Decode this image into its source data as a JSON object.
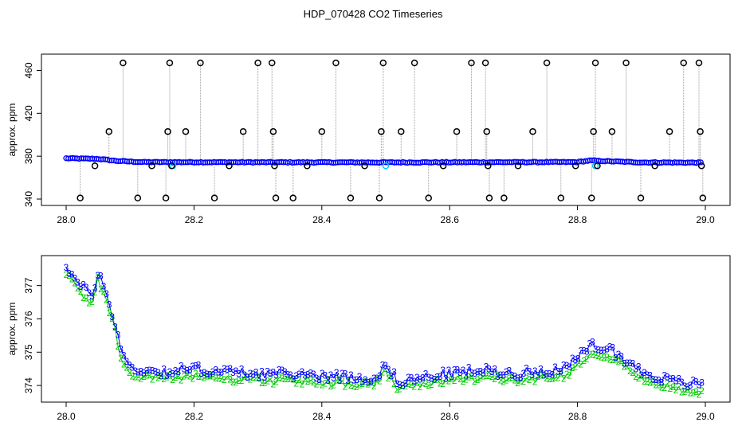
{
  "title": "HDP_070428  CO2 Timeseries",
  "chart_data": [
    {
      "type": "scatter",
      "ylabel": "approx. ppm",
      "xlim": [
        28.0,
        29.0
      ],
      "ylim": [
        340,
        470
      ],
      "xticks": [
        28.0,
        28.2,
        28.4,
        28.6,
        28.8,
        29.0
      ],
      "xtick_labels": [
        "28.0",
        "28.2",
        "28.4",
        "28.6",
        "28.8",
        "29.0"
      ],
      "yticks": [
        340,
        380,
        420,
        460
      ],
      "ytick_labels": [
        "340",
        "380",
        "420",
        "460"
      ],
      "grid": false,
      "baseline_breakpoints": [
        [
          28.0,
          378
        ],
        [
          28.05,
          377.5
        ],
        [
          28.08,
          375.5
        ],
        [
          28.12,
          374.5
        ],
        [
          28.3,
          374.3
        ],
        [
          28.5,
          374.2
        ],
        [
          28.6,
          374.3
        ],
        [
          28.8,
          374.5
        ],
        [
          28.82,
          376
        ],
        [
          28.85,
          375.2
        ],
        [
          28.9,
          374.2
        ],
        [
          29.0,
          374
        ]
      ],
      "outliers": [
        {
          "x": 28.022,
          "y": 341
        },
        {
          "x": 28.045,
          "y": 371
        },
        {
          "x": 28.067,
          "y": 403
        },
        {
          "x": 28.089,
          "y": 467
        },
        {
          "x": 28.112,
          "y": 341
        },
        {
          "x": 28.134,
          "y": 371
        },
        {
          "x": 28.156,
          "y": 341
        },
        {
          "x": 28.159,
          "y": 403
        },
        {
          "x": 28.162,
          "y": 467
        },
        {
          "x": 28.165,
          "y": 371
        },
        {
          "x": 28.187,
          "y": 403
        },
        {
          "x": 28.21,
          "y": 467
        },
        {
          "x": 28.232,
          "y": 341
        },
        {
          "x": 28.255,
          "y": 371
        },
        {
          "x": 28.277,
          "y": 403
        },
        {
          "x": 28.3,
          "y": 467
        },
        {
          "x": 28.322,
          "y": 467
        },
        {
          "x": 28.324,
          "y": 403
        },
        {
          "x": 28.326,
          "y": 371
        },
        {
          "x": 28.328,
          "y": 341
        },
        {
          "x": 28.355,
          "y": 341
        },
        {
          "x": 28.377,
          "y": 371
        },
        {
          "x": 28.4,
          "y": 403
        },
        {
          "x": 28.422,
          "y": 467
        },
        {
          "x": 28.445,
          "y": 341
        },
        {
          "x": 28.467,
          "y": 371
        },
        {
          "x": 28.49,
          "y": 341
        },
        {
          "x": 28.493,
          "y": 403
        },
        {
          "x": 28.496,
          "y": 467
        },
        {
          "x": 28.524,
          "y": 403
        },
        {
          "x": 28.545,
          "y": 467
        },
        {
          "x": 28.567,
          "y": 341
        },
        {
          "x": 28.59,
          "y": 371
        },
        {
          "x": 28.611,
          "y": 403
        },
        {
          "x": 28.634,
          "y": 467
        },
        {
          "x": 28.656,
          "y": 467
        },
        {
          "x": 28.658,
          "y": 403
        },
        {
          "x": 28.66,
          "y": 371
        },
        {
          "x": 28.662,
          "y": 341
        },
        {
          "x": 28.685,
          "y": 341
        },
        {
          "x": 28.707,
          "y": 371
        },
        {
          "x": 28.73,
          "y": 403
        },
        {
          "x": 28.752,
          "y": 467
        },
        {
          "x": 28.774,
          "y": 341
        },
        {
          "x": 28.797,
          "y": 371
        },
        {
          "x": 28.822,
          "y": 341
        },
        {
          "x": 28.825,
          "y": 403
        },
        {
          "x": 28.828,
          "y": 467
        },
        {
          "x": 28.831,
          "y": 371
        },
        {
          "x": 28.854,
          "y": 403
        },
        {
          "x": 28.876,
          "y": 467
        },
        {
          "x": 28.899,
          "y": 341
        },
        {
          "x": 28.921,
          "y": 371
        },
        {
          "x": 28.944,
          "y": 403
        },
        {
          "x": 28.966,
          "y": 467
        },
        {
          "x": 28.99,
          "y": 467
        },
        {
          "x": 28.992,
          "y": 403
        },
        {
          "x": 28.994,
          "y": 371
        },
        {
          "x": 28.996,
          "y": 341
        }
      ],
      "highlight_points": [
        {
          "x": 28.167,
          "y": 371
        },
        {
          "x": 28.5,
          "y": 371
        },
        {
          "x": 28.828,
          "y": 371
        }
      ],
      "colors": {
        "series": "#0000ff",
        "outlier": "#000000",
        "drop": "#999999",
        "highlight": "#00ccff"
      }
    },
    {
      "type": "line",
      "ylabel": "approx. ppm",
      "xlim": [
        28.0,
        29.0
      ],
      "ylim": [
        373.5,
        377.9
      ],
      "xticks": [
        28.0,
        28.2,
        28.4,
        28.6,
        28.8,
        29.0
      ],
      "xtick_labels": [
        "28.0",
        "28.2",
        "28.4",
        "28.6",
        "28.8",
        "29.0"
      ],
      "yticks": [
        374,
        375,
        376,
        377
      ],
      "ytick_labels": [
        "374",
        "375",
        "376",
        "377"
      ],
      "grid": false,
      "series": [
        {
          "marker": "3",
          "color": "#0000ff",
          "breakpoints": [
            [
              28.0,
              377.6
            ],
            [
              28.02,
              377.0
            ],
            [
              28.04,
              376.7
            ],
            [
              28.05,
              377.4
            ],
            [
              28.06,
              376.9
            ],
            [
              28.075,
              376.0
            ],
            [
              28.085,
              375.1
            ],
            [
              28.1,
              374.5
            ],
            [
              28.15,
              374.4
            ],
            [
              28.2,
              374.5
            ],
            [
              28.25,
              374.4
            ],
            [
              28.3,
              374.35
            ],
            [
              28.4,
              374.3
            ],
            [
              28.48,
              374.2
            ],
            [
              28.5,
              374.6
            ],
            [
              28.52,
              374.1
            ],
            [
              28.55,
              374.2
            ],
            [
              28.6,
              374.35
            ],
            [
              28.65,
              374.45
            ],
            [
              28.7,
              374.35
            ],
            [
              28.78,
              374.5
            ],
            [
              28.8,
              374.8
            ],
            [
              28.82,
              375.2
            ],
            [
              28.85,
              375.1
            ],
            [
              28.9,
              374.4
            ],
            [
              28.95,
              374.1
            ],
            [
              29.0,
              374.0
            ]
          ]
        },
        {
          "marker": "2",
          "color": "#00cc00",
          "offset": -0.2
        }
      ]
    }
  ]
}
